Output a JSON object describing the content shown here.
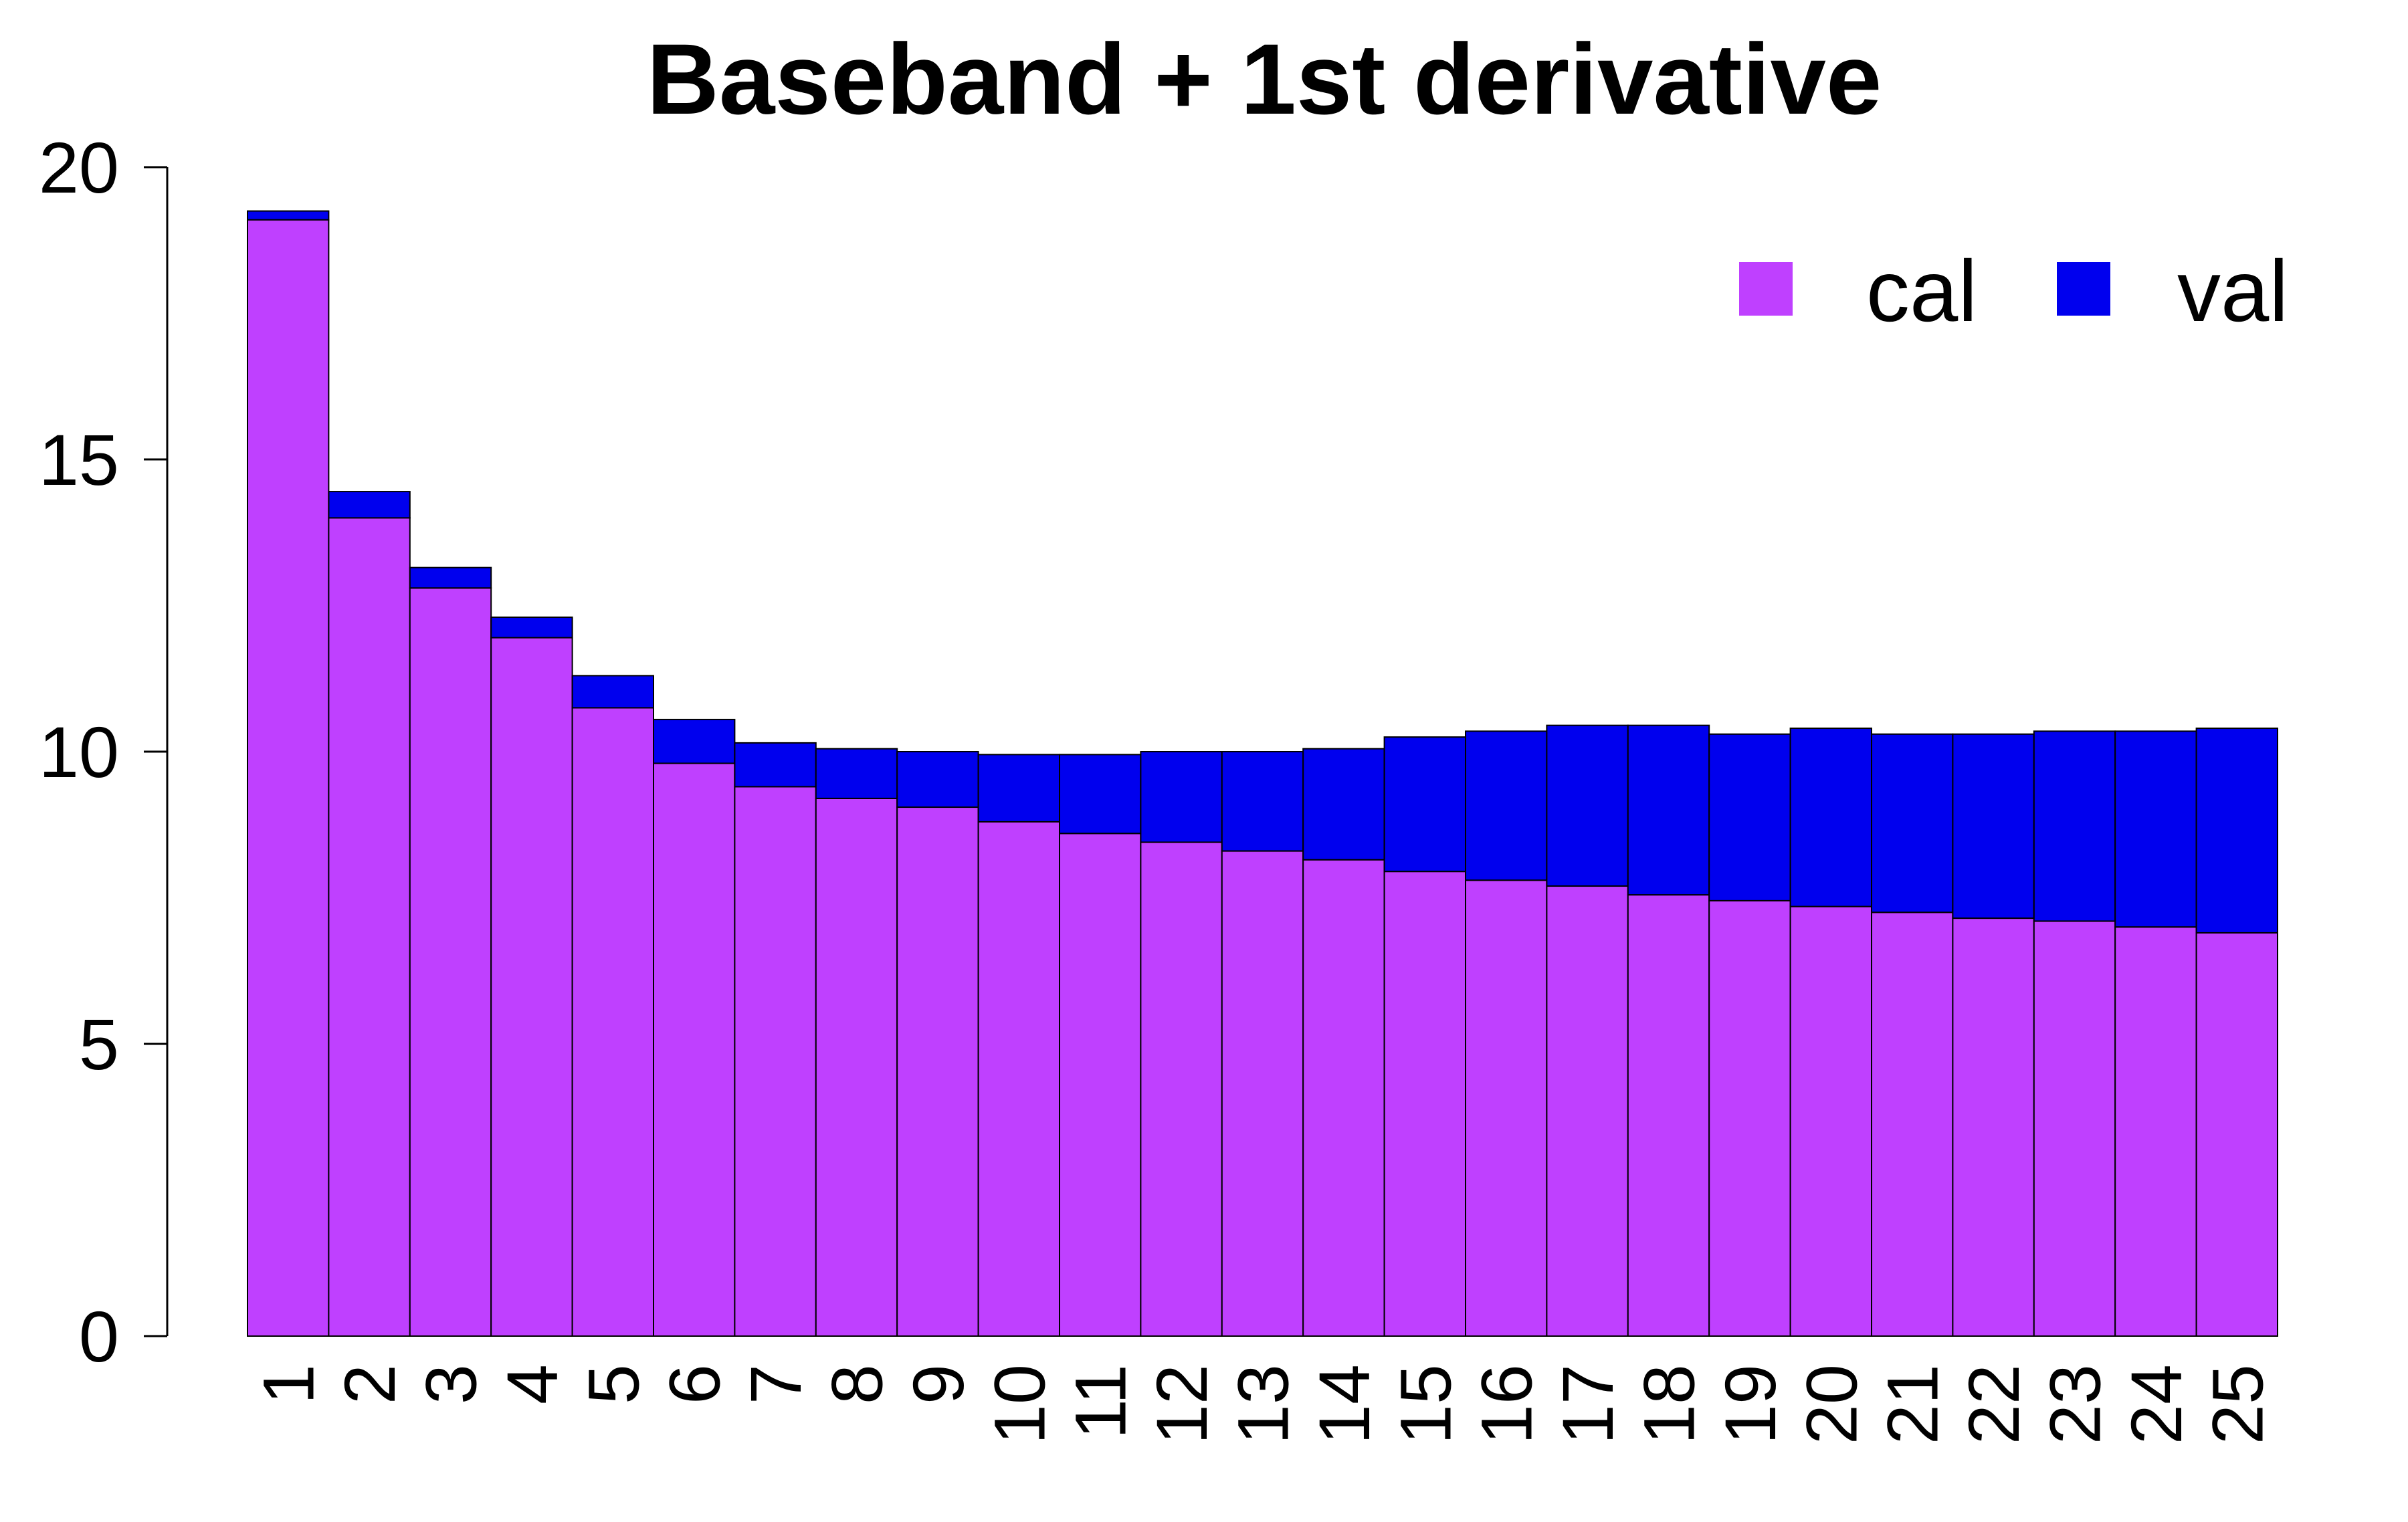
{
  "chart_data": {
    "type": "bar",
    "stacked": true,
    "title": "Baseband + 1st derivative",
    "xlabel": "",
    "ylabel": "",
    "ylim": [
      0,
      20
    ],
    "yticks": [
      0,
      5,
      10,
      15,
      20
    ],
    "categories": [
      "1",
      "2",
      "3",
      "4",
      "5",
      "6",
      "7",
      "8",
      "9",
      "10",
      "11",
      "12",
      "13",
      "14",
      "15",
      "16",
      "17",
      "18",
      "19",
      "20",
      "21",
      "22",
      "23",
      "24",
      "25"
    ],
    "series": [
      {
        "name": "cal",
        "color": "#BF40FF",
        "values": [
          19.1,
          14.0,
          12.8,
          11.95,
          10.75,
          9.8,
          9.4,
          9.2,
          9.05,
          8.8,
          8.6,
          8.45,
          8.3,
          8.15,
          7.95,
          7.8,
          7.7,
          7.55,
          7.45,
          7.35,
          7.25,
          7.15,
          7.1,
          7.0,
          6.9
        ]
      },
      {
        "name": "val",
        "color": "#0000EE",
        "values": [
          0.15,
          0.45,
          0.35,
          0.35,
          0.55,
          0.75,
          0.75,
          0.85,
          0.95,
          1.15,
          1.35,
          1.55,
          1.7,
          1.9,
          2.3,
          2.55,
          2.75,
          2.9,
          2.85,
          3.05,
          3.05,
          3.15,
          3.25,
          3.35,
          3.5
        ]
      }
    ],
    "legend_position": "top-right",
    "grid": false
  }
}
